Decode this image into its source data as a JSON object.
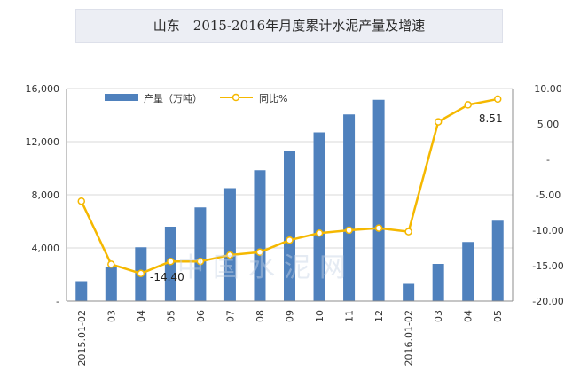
{
  "chart_data": {
    "type": "bar+line",
    "title": "山东　2015-2016年月度累计水泥产量及增速",
    "categories": [
      "2015.01-02",
      "03",
      "04",
      "05",
      "06",
      "07",
      "08",
      "09",
      "10",
      "11",
      "12",
      "2016.01-02",
      "03",
      "04",
      "05"
    ],
    "series": [
      {
        "name": "产量（万吨）",
        "type": "bar",
        "axis": "left",
        "color": "#4f81bd",
        "values": [
          1500,
          2600,
          4050,
          5600,
          7050,
          8500,
          9850,
          11300,
          12700,
          14050,
          15150,
          1300,
          2800,
          4450,
          6050
        ]
      },
      {
        "name": "同比%",
        "type": "line",
        "axis": "right",
        "color": "#f5b800",
        "values": [
          -5.9,
          -14.8,
          -16.1,
          -14.4,
          -14.4,
          -13.5,
          -13.1,
          -11.4,
          -10.4,
          -10.0,
          -9.7,
          -10.2,
          5.3,
          7.7,
          8.51
        ]
      }
    ],
    "ylim_left": [
      0,
      16000
    ],
    "yticks_left": [
      "-",
      "4,000",
      "8,000",
      "12,000",
      "16,000"
    ],
    "ylim_right": [
      -20,
      10
    ],
    "yticks_right": [
      "-20.00",
      "-15.00",
      "-10.00",
      "-5.00",
      "-",
      "5.00",
      "10.00"
    ],
    "annotations": [
      "-14.40",
      "8.51"
    ],
    "legend": "top-left",
    "grid": "horizontal"
  },
  "watermark": "中国水泥网"
}
